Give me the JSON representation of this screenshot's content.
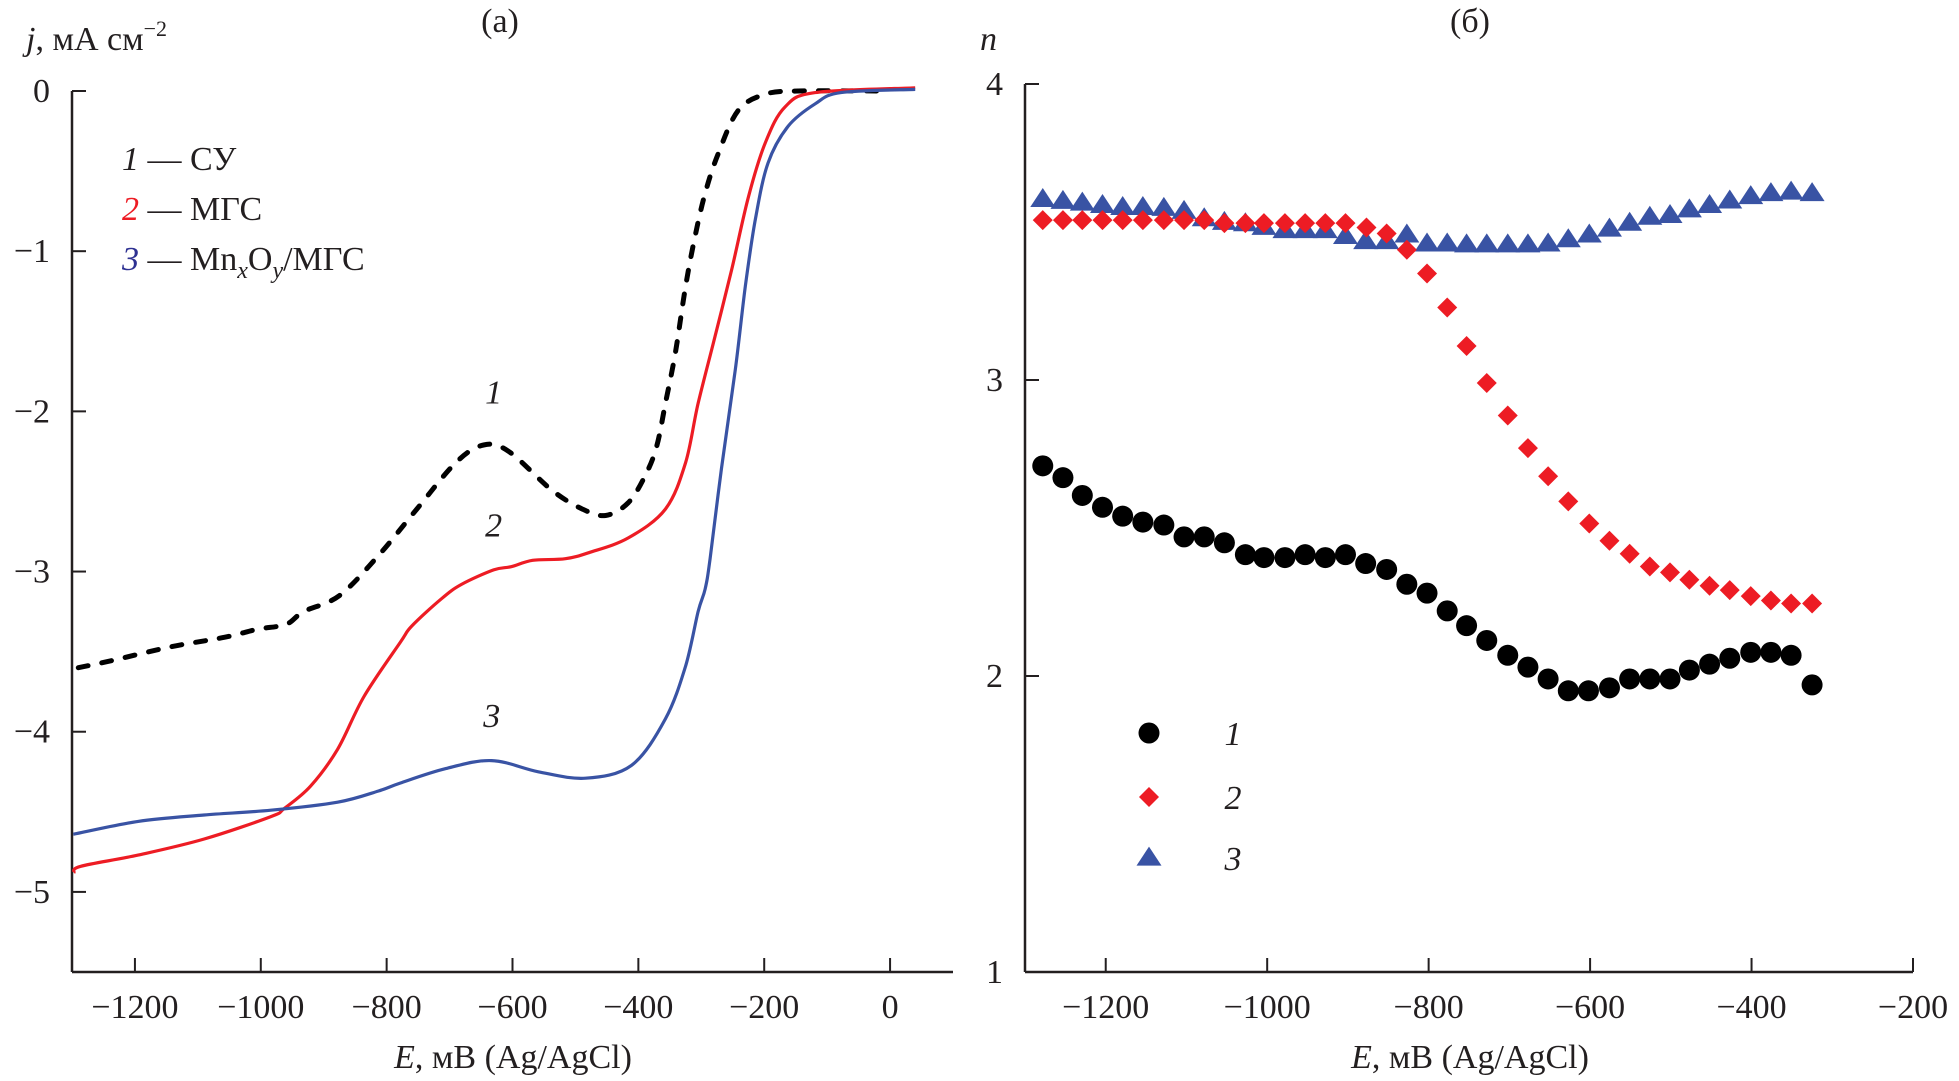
{
  "chart_data": [
    {
      "panel": "(а)",
      "type": "line",
      "title": "(а)",
      "xlabel_var": "E",
      "xlabel_rest": ", мВ (Ag/AgCl)",
      "ylabel_var": "j",
      "ylabel_rest": ", мА см",
      "ylabel_sup": "−2",
      "xlim": [
        -1300,
        100
      ],
      "ylim": [
        -5.5,
        0
      ],
      "xticks": [
        -1200,
        -1000,
        -800,
        -600,
        -400,
        -200,
        0
      ],
      "xtick_labels": [
        "−1200",
        "−1000",
        "−800",
        "−600",
        "−400",
        "−200",
        "0"
      ],
      "yticks": [
        0,
        -1,
        -2,
        -3,
        -4,
        -5
      ],
      "ytick_labels": [
        "0",
        "−1",
        "−2",
        "−3",
        "−4",
        "−5"
      ],
      "grid": false,
      "legend_position": "top-left",
      "legend": [
        {
          "num": "1",
          "dash": " — ",
          "label": "СУ",
          "color": "#231f20"
        },
        {
          "num": "2",
          "dash": " — ",
          "label": "МГС",
          "color": "#ed1c24"
        },
        {
          "num": "3",
          "dash": " — ",
          "label_pre": "Mn",
          "sub_x": "x",
          "label_mid": "O",
          "sub_y": "y",
          "label_post": "/МГС",
          "color": "#2e3192"
        }
      ],
      "series": [
        {
          "name": "1 — СУ",
          "label": "1",
          "color": "#000000",
          "style": "dashed",
          "label_at": [
            -630,
            -1.95
          ],
          "x": [
            -1290,
            -1241,
            -1143,
            -1057,
            -1005,
            -960,
            -932,
            -875,
            -813,
            -752,
            -690,
            -646,
            -606,
            -538,
            -489,
            -452,
            -416,
            -389,
            -371,
            -357,
            -341,
            -325,
            -310,
            -294,
            -273,
            -241,
            -198,
            -146,
            -14
          ],
          "y": [
            -3.6,
            -3.56,
            -3.47,
            -3.41,
            -3.36,
            -3.33,
            -3.25,
            -3.15,
            -2.9,
            -2.61,
            -2.32,
            -2.21,
            -2.25,
            -2.49,
            -2.61,
            -2.65,
            -2.57,
            -2.4,
            -2.22,
            -1.95,
            -1.63,
            -1.22,
            -0.91,
            -0.64,
            -0.39,
            -0.12,
            -0.02,
            0.0,
            0.0
          ]
        },
        {
          "name": "2 — МГС",
          "label": "2",
          "color": "#ed1c24",
          "style": "solid",
          "label_at": [
            -630,
            -2.78
          ],
          "x": [
            -1297,
            -1286,
            -1195,
            -1090,
            -984,
            -963,
            -921,
            -878,
            -836,
            -778,
            -760,
            -713,
            -681,
            -630,
            -602,
            -568,
            -516,
            -477,
            -416,
            -357,
            -325,
            -305,
            -278,
            -252,
            -225,
            -198,
            -167,
            -119,
            40
          ],
          "y": [
            -4.88,
            -4.84,
            -4.77,
            -4.67,
            -4.53,
            -4.48,
            -4.34,
            -4.11,
            -3.78,
            -3.44,
            -3.34,
            -3.17,
            -3.08,
            -2.99,
            -2.97,
            -2.93,
            -2.92,
            -2.88,
            -2.79,
            -2.61,
            -2.32,
            -1.95,
            -1.53,
            -1.12,
            -0.66,
            -0.32,
            -0.1,
            -0.01,
            0.02
          ]
        },
        {
          "name": "3 — MnxOy/МГС",
          "label": "3",
          "color": "#3953a4",
          "style": "solid",
          "label_at": [
            -633,
            -3.97
          ],
          "x": [
            -1298,
            -1195,
            -1090,
            -984,
            -878,
            -813,
            -778,
            -706,
            -633,
            -559,
            -484,
            -411,
            -357,
            -325,
            -305,
            -294,
            -286,
            -268,
            -246,
            -230,
            -214,
            -194,
            -162,
            -119,
            -78,
            40
          ],
          "y": [
            -4.64,
            -4.56,
            -4.52,
            -4.49,
            -4.44,
            -4.37,
            -4.32,
            -4.23,
            -4.18,
            -4.25,
            -4.29,
            -4.21,
            -3.92,
            -3.59,
            -3.25,
            -3.11,
            -2.92,
            -2.36,
            -1.74,
            -1.22,
            -0.8,
            -0.45,
            -0.22,
            -0.08,
            -0.01,
            0.01
          ]
        }
      ]
    },
    {
      "panel": "(б)",
      "type": "scatter",
      "title": "(б)",
      "xlabel_var": "E",
      "xlabel_rest": ", мВ (Ag/AgCl)",
      "ylabel_var": "n",
      "xlim": [
        -1300,
        -200
      ],
      "ylim": [
        1,
        4
      ],
      "xticks": [
        -1200,
        -1000,
        -800,
        -600,
        -400,
        -200
      ],
      "xtick_labels": [
        "−1200",
        "−1000",
        "−800",
        "−600",
        "−400",
        "−200"
      ],
      "yticks": [
        1,
        2,
        3,
        4
      ],
      "ytick_labels": [
        "1",
        "2",
        "3",
        "4"
      ],
      "grid": false,
      "legend_position": "lower-left",
      "legend": [
        {
          "num": "1",
          "marker": "circle",
          "color": "#000000"
        },
        {
          "num": "2",
          "marker": "diamond",
          "color": "#ed1c24"
        },
        {
          "num": "3",
          "marker": "triangle",
          "color": "#3953a4"
        }
      ],
      "series": [
        {
          "name": "1",
          "marker": "circle",
          "color": "#000000",
          "x": [
            -1278,
            -1253,
            -1229,
            -1204,
            -1179,
            -1154,
            -1128,
            -1103,
            -1078,
            -1053,
            -1027,
            -1004,
            -978,
            -953,
            -928,
            -903,
            -878,
            -852,
            -827,
            -802,
            -777,
            -753,
            -728,
            -702,
            -677,
            -652,
            -627,
            -602,
            -576,
            -551,
            -526,
            -501,
            -477,
            -452,
            -427,
            -401,
            -376,
            -351,
            -325
          ],
          "y": [
            2.71,
            2.67,
            2.61,
            2.57,
            2.54,
            2.52,
            2.51,
            2.47,
            2.47,
            2.45,
            2.41,
            2.4,
            2.4,
            2.41,
            2.4,
            2.41,
            2.38,
            2.36,
            2.31,
            2.28,
            2.22,
            2.17,
            2.12,
            2.07,
            2.03,
            1.99,
            1.95,
            1.95,
            1.96,
            1.99,
            1.99,
            1.99,
            2.02,
            2.04,
            2.06,
            2.08,
            2.08,
            2.07,
            1.97
          ]
        },
        {
          "name": "2",
          "marker": "diamond",
          "color": "#ed1c24",
          "x": [
            -1278,
            -1253,
            -1229,
            -1204,
            -1179,
            -1154,
            -1128,
            -1103,
            -1078,
            -1053,
            -1027,
            -1004,
            -978,
            -953,
            -928,
            -903,
            -877,
            -852,
            -827,
            -802,
            -777,
            -753,
            -728,
            -702,
            -677,
            -652,
            -627,
            -601,
            -576,
            -551,
            -526,
            -501,
            -477,
            -452,
            -427,
            -401,
            -376,
            -351,
            -325
          ],
          "y": [
            3.54,
            3.54,
            3.54,
            3.54,
            3.54,
            3.54,
            3.54,
            3.54,
            3.54,
            3.53,
            3.53,
            3.53,
            3.53,
            3.53,
            3.53,
            3.53,
            3.515,
            3.495,
            3.44,
            3.36,
            3.245,
            3.115,
            2.99,
            2.88,
            2.77,
            2.675,
            2.59,
            2.515,
            2.457,
            2.413,
            2.37,
            2.35,
            2.325,
            2.305,
            2.29,
            2.27,
            2.255,
            2.245,
            2.245
          ]
        },
        {
          "name": "3",
          "marker": "triangle",
          "color": "#3953a4",
          "x": [
            -1278,
            -1253,
            -1229,
            -1204,
            -1179,
            -1154,
            -1128,
            -1103,
            -1078,
            -1053,
            -1027,
            -1004,
            -978,
            -953,
            -928,
            -903,
            -878,
            -852,
            -827,
            -802,
            -777,
            -753,
            -728,
            -702,
            -677,
            -652,
            -627,
            -601,
            -576,
            -551,
            -526,
            -501,
            -477,
            -452,
            -427,
            -401,
            -376,
            -351,
            -325
          ],
          "y": [
            3.61,
            3.604,
            3.598,
            3.59,
            3.583,
            3.583,
            3.58,
            3.57,
            3.545,
            3.533,
            3.528,
            3.516,
            3.505,
            3.505,
            3.505,
            3.485,
            3.468,
            3.468,
            3.49,
            3.46,
            3.46,
            3.457,
            3.457,
            3.457,
            3.457,
            3.46,
            3.474,
            3.49,
            3.51,
            3.53,
            3.55,
            3.556,
            3.575,
            3.59,
            3.605,
            3.62,
            3.63,
            3.635,
            3.63
          ]
        }
      ]
    }
  ]
}
